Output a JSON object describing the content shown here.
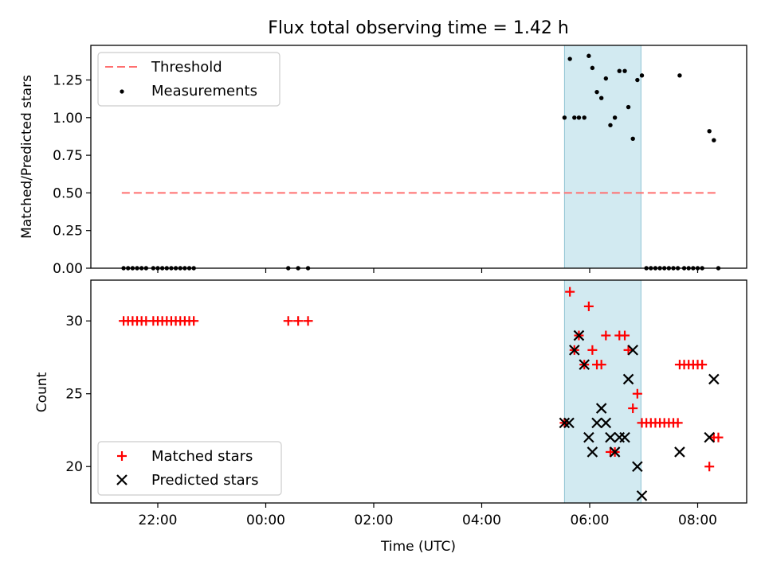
{
  "chart_data": [
    {
      "type": "scatter",
      "title": "Flux total observing time = 1.42 h",
      "xlabel": "",
      "ylabel": "Matched/Predicted stars",
      "ylim": [
        0,
        1.48
      ],
      "yticks": [
        "0.00",
        "0.25",
        "0.50",
        "0.75",
        "1.00",
        "1.25"
      ],
      "shaded_span": [
        "05:32",
        "06:57"
      ],
      "threshold": {
        "name": "Threshold",
        "value": 0.5,
        "x_from": "21:20",
        "x_to": "08:23",
        "color": "#ff6f6f"
      },
      "series": [
        {
          "name": "Measurements",
          "color": "#000000",
          "points": [
            [
              "21:22",
              0
            ],
            [
              "21:27",
              0
            ],
            [
              "21:32",
              0
            ],
            [
              "21:37",
              0
            ],
            [
              "21:42",
              0
            ],
            [
              "21:47",
              0
            ],
            [
              "21:55",
              0
            ],
            [
              "22:00",
              0
            ],
            [
              "22:05",
              0
            ],
            [
              "22:10",
              0
            ],
            [
              "22:15",
              0
            ],
            [
              "22:20",
              0
            ],
            [
              "22:25",
              0
            ],
            [
              "22:30",
              0
            ],
            [
              "22:35",
              0
            ],
            [
              "22:40",
              0
            ],
            [
              "00:25",
              0
            ],
            [
              "00:36",
              0
            ],
            [
              "00:47",
              0
            ],
            [
              "05:32",
              1.0
            ],
            [
              "05:38",
              1.39
            ],
            [
              "05:43",
              1.0
            ],
            [
              "05:48",
              1.0
            ],
            [
              "05:54",
              1.0
            ],
            [
              "05:59",
              1.41
            ],
            [
              "06:03",
              1.33
            ],
            [
              "06:08",
              1.17
            ],
            [
              "06:13",
              1.13
            ],
            [
              "06:18",
              1.26
            ],
            [
              "06:23",
              0.95
            ],
            [
              "06:28",
              1.0
            ],
            [
              "06:33",
              1.31
            ],
            [
              "06:39",
              1.31
            ],
            [
              "06:43",
              1.07
            ],
            [
              "06:48",
              0.86
            ],
            [
              "06:53",
              1.25
            ],
            [
              "06:58",
              1.28
            ],
            [
              "07:03",
              0
            ],
            [
              "07:08",
              0
            ],
            [
              "07:13",
              0
            ],
            [
              "07:18",
              0
            ],
            [
              "07:23",
              0
            ],
            [
              "07:28",
              0
            ],
            [
              "07:33",
              0
            ],
            [
              "07:38",
              0
            ],
            [
              "07:40",
              1.28
            ],
            [
              "07:45",
              0
            ],
            [
              "07:50",
              0
            ],
            [
              "07:55",
              0
            ],
            [
              "08:00",
              0
            ],
            [
              "08:05",
              0
            ],
            [
              "08:13",
              0.91
            ],
            [
              "08:18",
              0.85
            ],
            [
              "08:23",
              0
            ]
          ]
        }
      ]
    },
    {
      "type": "scatter",
      "title": "",
      "xlabel": "Time (UTC)",
      "ylabel": "Count",
      "ylim": [
        17.5,
        32.8
      ],
      "yticks": [
        "20",
        "25",
        "30"
      ],
      "xticks": [
        "22:00",
        "00:00",
        "02:00",
        "04:00",
        "06:00",
        "08:00"
      ],
      "shaded_span": [
        "05:32",
        "06:57"
      ],
      "series": [
        {
          "name": "Matched stars",
          "color": "#ff0000",
          "marker": "+",
          "points": [
            [
              "21:22",
              30
            ],
            [
              "21:27",
              30
            ],
            [
              "21:32",
              30
            ],
            [
              "21:37",
              30
            ],
            [
              "21:42",
              30
            ],
            [
              "21:47",
              30
            ],
            [
              "21:55",
              30
            ],
            [
              "22:00",
              30
            ],
            [
              "22:05",
              30
            ],
            [
              "22:10",
              30
            ],
            [
              "22:15",
              30
            ],
            [
              "22:20",
              30
            ],
            [
              "22:25",
              30
            ],
            [
              "22:30",
              30
            ],
            [
              "22:35",
              30
            ],
            [
              "22:40",
              30
            ],
            [
              "00:25",
              30
            ],
            [
              "00:36",
              30
            ],
            [
              "00:47",
              30
            ],
            [
              "05:32",
              23
            ],
            [
              "05:38",
              32
            ],
            [
              "05:43",
              28
            ],
            [
              "05:48",
              29
            ],
            [
              "05:54",
              27
            ],
            [
              "05:59",
              31
            ],
            [
              "06:03",
              28
            ],
            [
              "06:08",
              27
            ],
            [
              "06:13",
              27
            ],
            [
              "06:18",
              29
            ],
            [
              "06:23",
              21
            ],
            [
              "06:28",
              21
            ],
            [
              "06:33",
              29
            ],
            [
              "06:39",
              29
            ],
            [
              "06:43",
              28
            ],
            [
              "06:48",
              24
            ],
            [
              "06:53",
              25
            ],
            [
              "06:58",
              23
            ],
            [
              "07:03",
              23
            ],
            [
              "07:08",
              23
            ],
            [
              "07:13",
              23
            ],
            [
              "07:18",
              23
            ],
            [
              "07:23",
              23
            ],
            [
              "07:28",
              23
            ],
            [
              "07:33",
              23
            ],
            [
              "07:38",
              23
            ],
            [
              "07:40",
              27
            ],
            [
              "07:45",
              27
            ],
            [
              "07:50",
              27
            ],
            [
              "07:55",
              27
            ],
            [
              "08:00",
              27
            ],
            [
              "08:05",
              27
            ],
            [
              "08:13",
              20
            ],
            [
              "08:18",
              22
            ],
            [
              "08:23",
              22
            ]
          ]
        },
        {
          "name": "Predicted stars",
          "color": "#000000",
          "marker": "x",
          "points": [
            [
              "05:32",
              23
            ],
            [
              "05:37",
              23
            ],
            [
              "05:43",
              28
            ],
            [
              "05:48",
              29
            ],
            [
              "05:54",
              27
            ],
            [
              "05:59",
              22
            ],
            [
              "06:03",
              21
            ],
            [
              "06:08",
              23
            ],
            [
              "06:13",
              24
            ],
            [
              "06:18",
              23
            ],
            [
              "06:23",
              22
            ],
            [
              "06:28",
              21
            ],
            [
              "06:33",
              22
            ],
            [
              "06:39",
              22
            ],
            [
              "06:43",
              26
            ],
            [
              "06:48",
              28
            ],
            [
              "06:53",
              20
            ],
            [
              "06:58",
              18
            ],
            [
              "07:40",
              21
            ],
            [
              "08:13",
              22
            ],
            [
              "08:18",
              26
            ]
          ]
        }
      ]
    }
  ],
  "legend_top": {
    "threshold_label": "Threshold",
    "measurements_label": "Measurements"
  },
  "legend_bottom": {
    "matched_label": "Matched stars",
    "predicted_label": "Predicted stars"
  }
}
